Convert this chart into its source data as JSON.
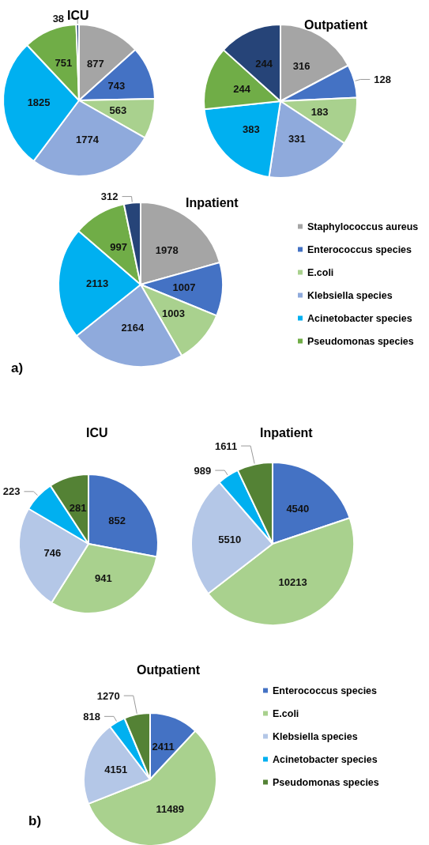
{
  "chart_data": [
    {
      "type": "pie",
      "categories": [
        "Staphylococcus aureus",
        "Enterococcus species",
        "E.coli",
        "Klebsiella species",
        "Acinetobacter species",
        "Pseudomonas species",
        null
      ],
      "colors": [
        "#a5a5a5",
        "#4472c4",
        "#a9d18e",
        "#8faadc",
        "#00b0f0",
        "#70ad47",
        "#264478"
      ],
      "data_labels": true,
      "legend": "right",
      "annotations": [
        "a)"
      ],
      "series": [
        {
          "name": "ICU",
          "values": [
            877,
            743,
            563,
            1774,
            1825,
            751,
            38
          ]
        },
        {
          "name": "Outpatient",
          "values": [
            316,
            128,
            183,
            331,
            383,
            244,
            244
          ]
        },
        {
          "name": "Inpatient",
          "values": [
            1978,
            1007,
            1003,
            2164,
            2113,
            997,
            312
          ]
        }
      ]
    },
    {
      "type": "pie",
      "categories": [
        "Enterococcus species",
        "E.coli",
        "Klebsiella species",
        "Acinetobacter species",
        "Pseudomonas species"
      ],
      "colors": [
        "#4472c4",
        "#a9d18e",
        "#b4c7e7",
        "#00b0f0",
        "#548235"
      ],
      "data_labels": true,
      "legend": "right",
      "annotations": [
        "b)"
      ],
      "series": [
        {
          "name": "ICU",
          "values": [
            852,
            941,
            746,
            223,
            281
          ]
        },
        {
          "name": "Inpatient",
          "values": [
            4540,
            10213,
            5510,
            989,
            1611
          ]
        },
        {
          "name": "Outpatient",
          "values": [
            2411,
            11489,
            4151,
            818,
            1270
          ]
        }
      ]
    }
  ]
}
